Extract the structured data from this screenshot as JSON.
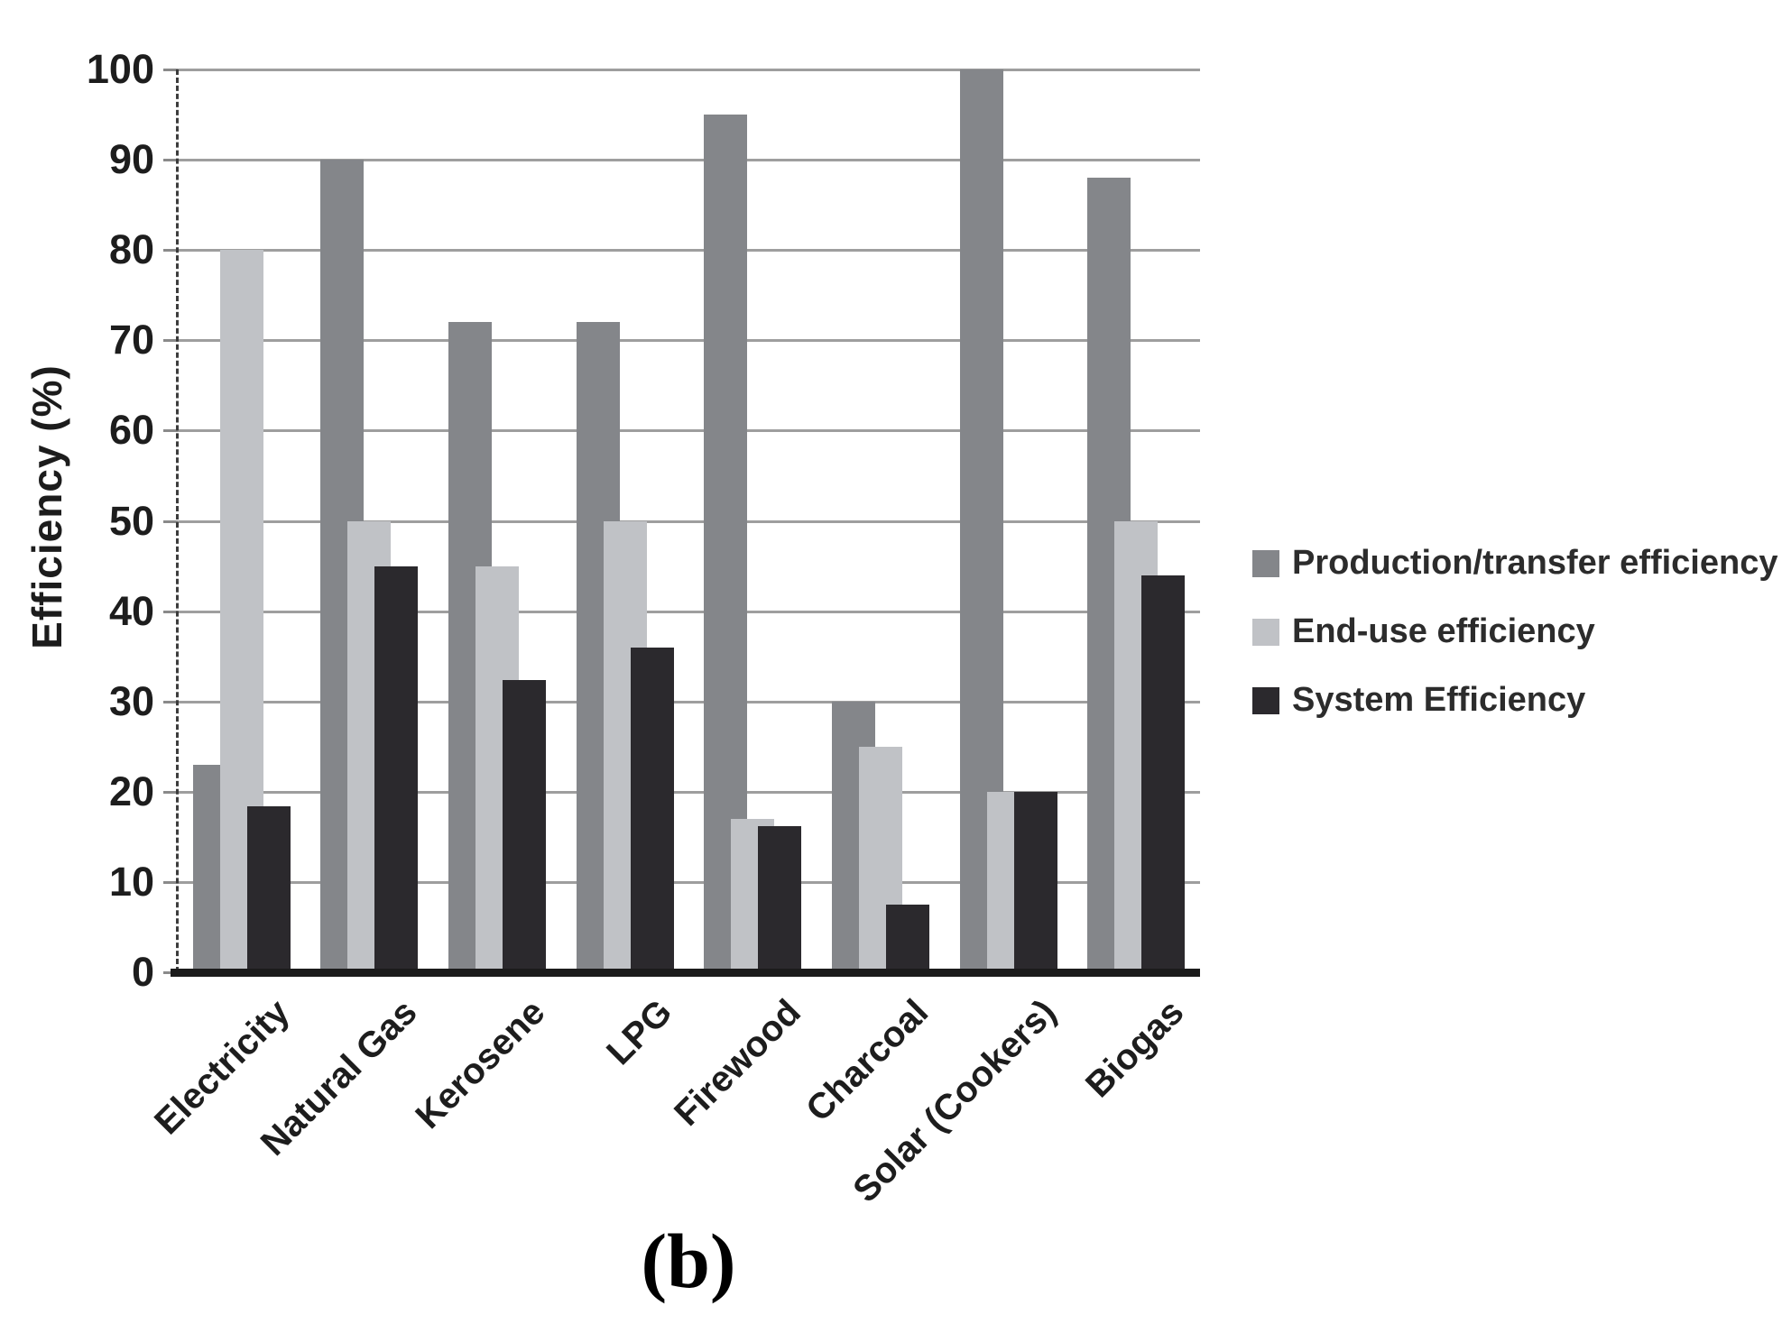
{
  "chart_data": {
    "type": "bar",
    "title": "",
    "ylabel": "Efficiency (%)",
    "xlabel": "",
    "caption": "(b)",
    "categories": [
      "Electricity",
      "Natural Gas",
      "Kerosene",
      "LPG",
      "Firewood",
      "Charcoal",
      "Solar (Cookers)",
      "Biogas"
    ],
    "series": [
      {
        "name": "Production/transfer efficiency",
        "color": "#84868a",
        "values": [
          23,
          90,
          72,
          72,
          95,
          30,
          100,
          88
        ]
      },
      {
        "name": "End-use efficiency",
        "color": "#c0c2c6",
        "values": [
          80,
          50,
          45,
          50,
          17,
          25,
          20,
          50
        ]
      },
      {
        "name": "System Efficiency",
        "color": "#2b292d",
        "values": [
          18.4,
          45,
          32.4,
          36,
          16.2,
          7.5,
          20,
          44
        ]
      }
    ],
    "ylim": [
      0,
      100
    ],
    "yticks": [
      0,
      10,
      20,
      30,
      40,
      50,
      60,
      70,
      80,
      90,
      100
    ],
    "grid": true,
    "gridline_color": "#9e9e9e",
    "axis_color": "#1b1b1b",
    "legend_position": "right"
  }
}
